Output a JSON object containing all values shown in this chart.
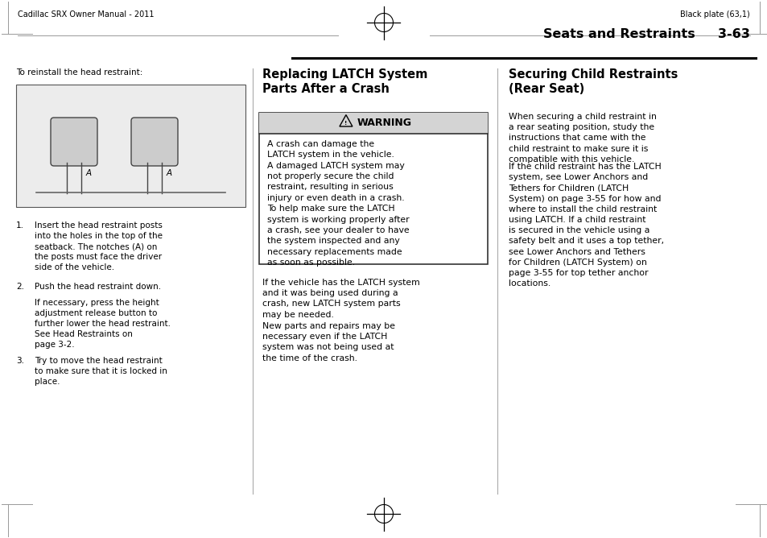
{
  "bg_color": "#ffffff",
  "page_width": 9.54,
  "page_height": 6.68,
  "header_left": "Cadillac SRX Owner Manual - 2011",
  "header_right": "Black plate (63,1)",
  "section_title": "Seats and Restraints",
  "page_number": "3-63",
  "col1_intro": "To reinstall the head restraint:",
  "col1_steps": [
    "Insert the head restraint posts\ninto the holes in the top of the\nseatback. The notches (A) on\nthe posts must face the driver\nside of the vehicle.",
    "Push the head restraint down.",
    "Try to move the head restraint\nto make sure that it is locked in\nplace."
  ],
  "col1_step2_sub": "If necessary, press the height\nadjustment release button to\nfurther lower the head restraint.\nSee Head Restraints on\npage 3-2.",
  "col2_title": "Replacing LATCH System\nParts After a Crash",
  "col2_warning_title": "WARNING",
  "col2_warning_text": "A crash can damage the\nLATCH system in the vehicle.\nA damaged LATCH system may\nnot properly secure the child\nrestraint, resulting in serious\ninjury or even death in a crash.\nTo help make sure the LATCH\nsystem is working properly after\na crash, see your dealer to have\nthe system inspected and any\nnecessary replacements made\nas soon as possible.",
  "col2_body1": "If the vehicle has the LATCH system\nand it was being used during a\ncrash, new LATCH system parts\nmay be needed.",
  "col2_body2": "New parts and repairs may be\nnecessary even if the LATCH\nsystem was not being used at\nthe time of the crash.",
  "col3_title": "Securing Child Restraints\n(Rear Seat)",
  "col3_body1": "When securing a child restraint in\na rear seating position, study the\ninstructions that came with the\nchild restraint to make sure it is\ncompatible with this vehicle.",
  "col3_body2": "If the child restraint has the LATCH\nsystem, see Lower Anchors and\nTethers for Children (LATCH\nSystem) on page 3-55 for how and\nwhere to install the child restraint\nusing LATCH. If a child restraint\nis secured in the vehicle using a\nsafety belt and it uses a top tether,\nsee Lower Anchors and Tethers\nfor Children (LATCH System) on\npage 3-55 for top tether anchor\nlocations.",
  "warning_bg": "#d4d4d4",
  "text_color": "#000000",
  "font_size_body": 7.5,
  "font_size_header": 7.0,
  "font_size_section": 11.5,
  "font_size_col_title": 10.5,
  "font_size_warning_title": 9.0
}
